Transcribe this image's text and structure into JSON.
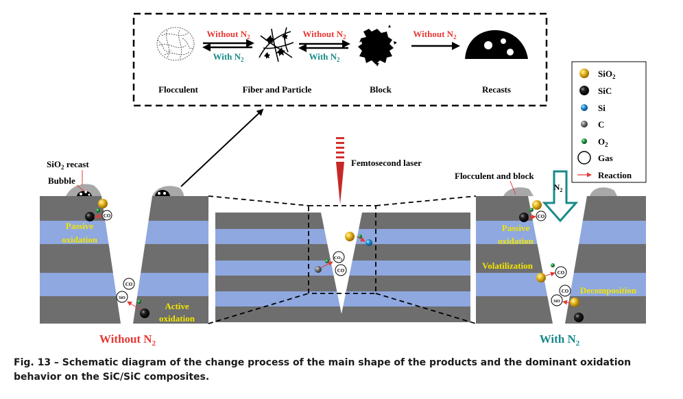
{
  "process": {
    "steps": [
      "Flocculent",
      "Fiber and Particle",
      "Block",
      "Recasts"
    ],
    "without_n2": [
      "Without N",
      "Without N",
      "Without N"
    ],
    "with_n2": [
      "With N",
      "With N"
    ],
    "subscript": "2"
  },
  "legend": {
    "items": [
      {
        "main": "SiO",
        "sub": "2",
        "shape": "gold-sphere"
      },
      {
        "main": "SiC",
        "sub": "",
        "shape": "black-sphere"
      },
      {
        "main": "Si",
        "sub": "",
        "shape": "blue-sphere"
      },
      {
        "main": "C",
        "sub": "",
        "shape": "gray-sphere"
      },
      {
        "main": "O",
        "sub": "2",
        "shape": "green-sphere"
      },
      {
        "main": "Gas",
        "sub": "",
        "shape": "circle"
      },
      {
        "main": "Reaction",
        "sub": "",
        "shape": "red-arrow"
      }
    ]
  },
  "laser_label": "Femtosecond laser",
  "left": {
    "recast": {
      "main": "SiO",
      "sub": "2",
      "rest": " recast"
    },
    "bubble": "Bubble",
    "passive": [
      "Passive",
      "oxidation"
    ],
    "active": [
      "Active",
      "oxidation"
    ],
    "title": {
      "main": "Without N",
      "sub": "2"
    }
  },
  "right": {
    "flocculent": "Flocculent and block",
    "passive": [
      "Passive",
      "oxidation"
    ],
    "volatilization": "Volatilization",
    "decomposition": "Decomposition",
    "n2": {
      "main": "N",
      "sub": "2"
    },
    "title": {
      "main": "With N",
      "sub": "2"
    }
  },
  "gas": {
    "co": "CO",
    "co2": "CO",
    "co2_sub": "2",
    "sio": "SiO"
  },
  "caption": "Fig. 13 – Schematic diagram of the change process of the main shape of the products and the dominant oxidation behavior on the SiC/SiC composites.",
  "colors": {
    "gray_layer": "#6e6e6e",
    "blue_layer": "#8fa8e0",
    "sio2": "#e2b01c",
    "sic": "#111111",
    "si": "#1f8fd6",
    "c": "#707070",
    "o2": "#1a9a3a",
    "red": "#e53935",
    "teal": "#17898a",
    "yellow": "#f2e600"
  }
}
